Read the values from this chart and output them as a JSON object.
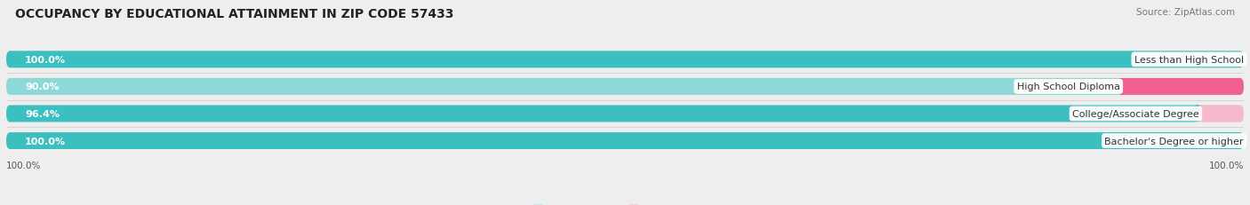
{
  "title": "OCCUPANCY BY EDUCATIONAL ATTAINMENT IN ZIP CODE 57433",
  "source": "Source: ZipAtlas.com",
  "categories": [
    "Less than High School",
    "High School Diploma",
    "College/Associate Degree",
    "Bachelor's Degree or higher"
  ],
  "owner_values": [
    100.0,
    90.0,
    96.4,
    100.0
  ],
  "renter_values": [
    0.0,
    10.0,
    3.6,
    0.0
  ],
  "owner_color": "#3bbfbf",
  "owner_color_light": "#8dd8d8",
  "renter_color": "#f06090",
  "renter_color_light": "#f8b8cc",
  "bg_color": "#eeeeee",
  "bar_bg_color": "#e0e0e0",
  "title_fontsize": 10,
  "label_fontsize": 8,
  "source_fontsize": 7.5,
  "tick_fontsize": 7.5,
  "x_left_label": "100.0%",
  "x_right_label": "100.0%",
  "bar_gap": 0.25
}
